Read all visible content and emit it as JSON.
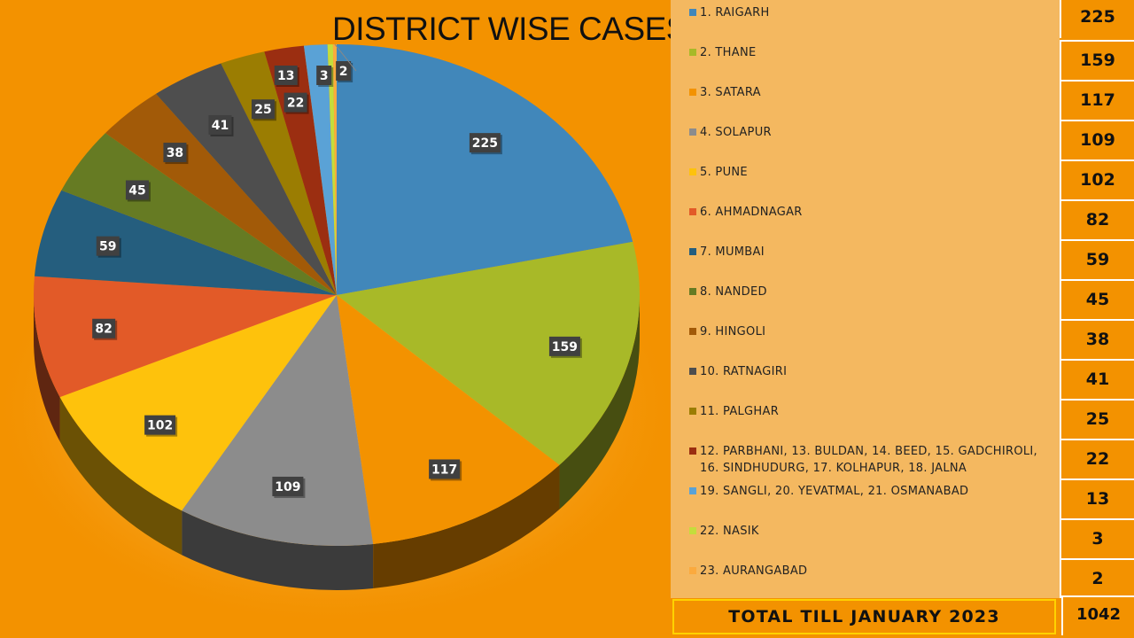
{
  "chart_data": {
    "type": "pie",
    "title": "DISTRICT WISE CASES",
    "categories": [
      "1. RAIGARH",
      "2. THANE",
      "3. SATARA",
      "4. SOLAPUR",
      "5. PUNE",
      "6. AHMADNAGAR",
      "7. MUMBAI",
      "8. NANDED",
      "9. HINGOLI",
      "10. RATNAGIRI",
      "11. PALGHAR",
      "12. PARBHANI, 13. BULDAN, 14. BEED, 15. GADCHIROLI, 16. SINDHUDURG, 17. KOLHAPUR,  18. JALNA",
      "19. SANGLI, 20. YEVATMAL, 21. OSMANABAD",
      "22. NASIK",
      "23. AURANGABAD"
    ],
    "values": [
      225,
      159,
      117,
      109,
      102,
      82,
      59,
      45,
      38,
      41,
      25,
      22,
      13,
      3,
      2
    ],
    "colors": [
      "#4187ba",
      "#a8b928",
      "#f39200",
      "#8c8c8c",
      "#fec20c",
      "#e25a28",
      "#255e7e",
      "#667b23",
      "#a25a08",
      "#4e4e4e",
      "#9b7d02",
      "#9b2e11",
      "#5aa2d6",
      "#c4dd3c",
      "#fbaa3e"
    ],
    "legend_position": "right",
    "total_label": "TOTAL TILL JANUARY 2023",
    "total_value": "1042"
  }
}
